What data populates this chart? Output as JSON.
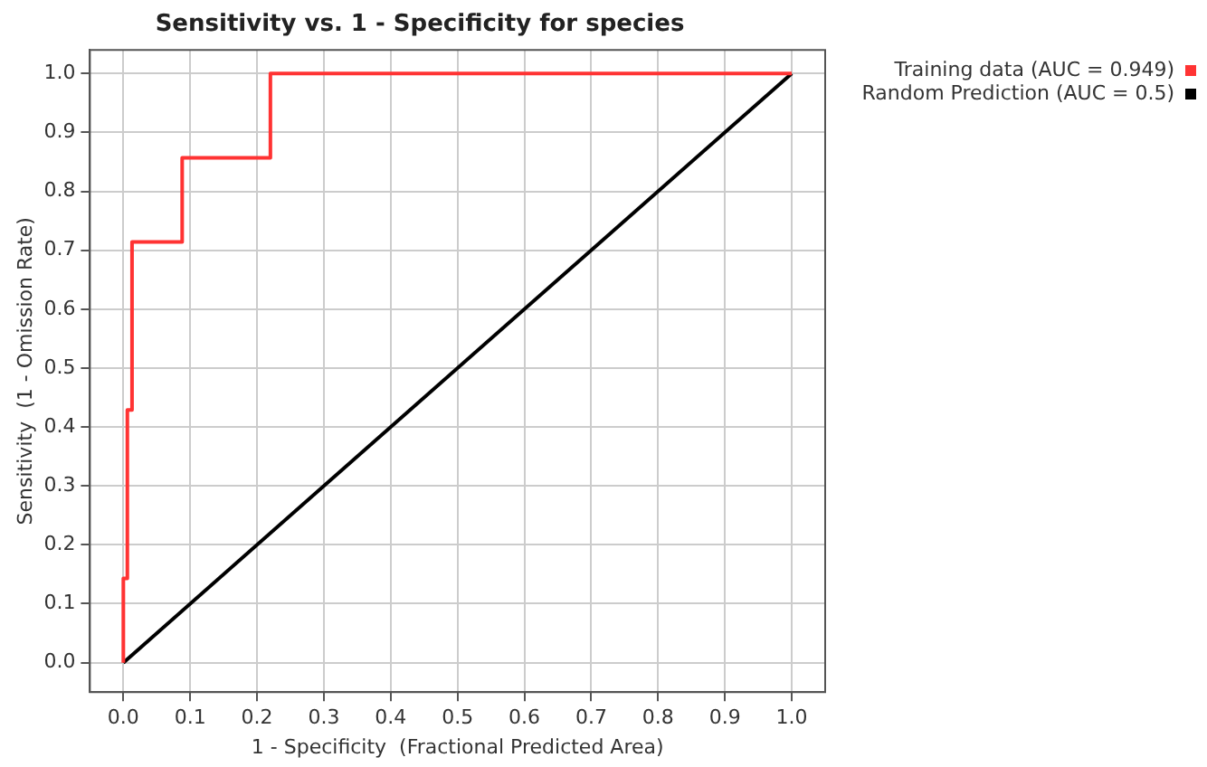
{
  "chart_data": {
    "type": "line",
    "title": "Sensitivity vs. 1 - Specificity for species",
    "xlabel": "1 - Specificity  (Fractional Predicted Area)",
    "ylabel": "Sensitivity  (1 - Omission Rate)",
    "series": [
      {
        "name": "Training data (AUC = 0.949)",
        "type": "step",
        "color": "#ff3333",
        "x": [
          0,
          0,
          0.006,
          0.013,
          0.088,
          0.22,
          1
        ],
        "values": [
          0,
          0.143,
          0.429,
          0.714,
          0.857,
          1,
          1
        ]
      },
      {
        "name": "Random Prediction (AUC = 0.5)",
        "color": "#000000",
        "x": [
          0,
          1
        ],
        "values": [
          0,
          1
        ]
      }
    ],
    "xlim": [
      -0.05,
      1.05
    ],
    "ylim": [
      -0.05,
      1.04
    ],
    "xticks": [
      {
        "value": 0,
        "label": "0.0"
      },
      0.1,
      0.2,
      0.3,
      0.4,
      0.5,
      0.6,
      0.7,
      0.8,
      0.9,
      {
        "value": 1,
        "label": "1.0"
      }
    ],
    "yticks": [
      {
        "value": 0,
        "label": "0.0"
      },
      0.1,
      0.2,
      0.3,
      0.4,
      0.5,
      0.6,
      0.7,
      0.8,
      0.9,
      {
        "value": 1,
        "label": "1.0"
      }
    ],
    "grid": true,
    "legend": "top right",
    "marker": "none",
    "line_style": "solid"
  }
}
